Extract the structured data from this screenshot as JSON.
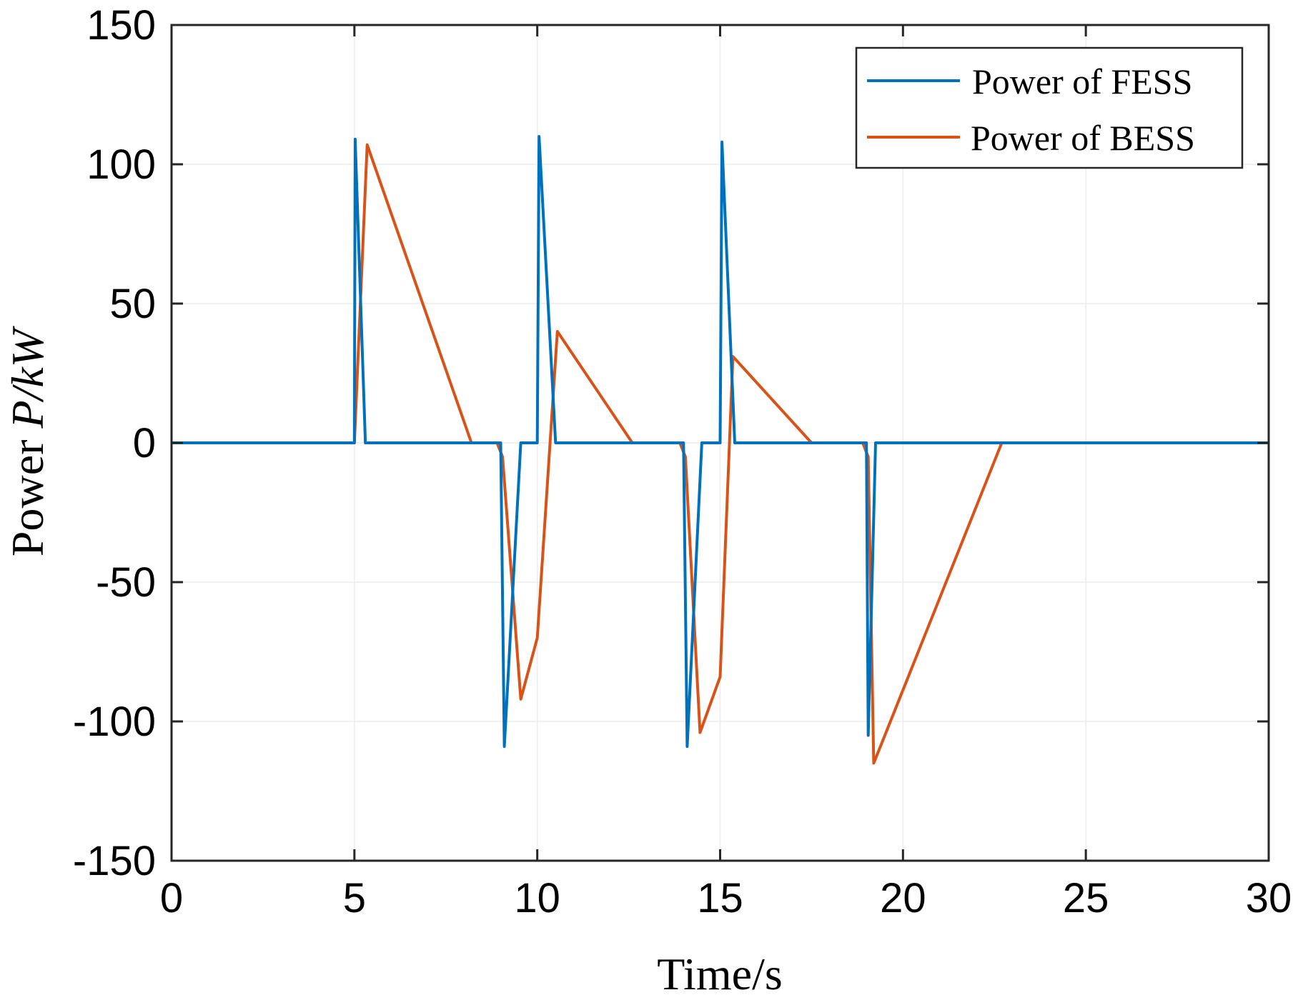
{
  "chart_data": {
    "type": "line",
    "title": "",
    "xlabel": "Time/s",
    "ylabel_prefix": "Power ",
    "ylabel_italic": "P/kW",
    "xlim": [
      0,
      30
    ],
    "ylim": [
      -150,
      150
    ],
    "xticks": [
      0,
      5,
      10,
      15,
      20,
      25,
      30
    ],
    "yticks": [
      -150,
      -100,
      -50,
      0,
      50,
      100,
      150
    ],
    "xtick_labels": [
      "0",
      "5",
      "10",
      "15",
      "20",
      "25",
      "30"
    ],
    "ytick_labels": [
      "-150",
      "-100",
      "-50",
      "0",
      "50",
      "100",
      "150"
    ],
    "grid": true,
    "legend_position": "top-right",
    "series": [
      {
        "name": "Power of FESS",
        "color": "#0072BD",
        "x": [
          0,
          5.0,
          5.02,
          5.3,
          30,
          30
        ],
        "y": [
          0,
          0,
          109,
          0,
          0,
          0
        ]
      },
      {
        "name": "Power of BESS",
        "color": "#D95319",
        "x": [
          0,
          5.0,
          5.35,
          8.2,
          8.9,
          9.05,
          9.55,
          10.0,
          10.55,
          12.6,
          13.9,
          14.05,
          14.45,
          15.0,
          15.35,
          17.5,
          18.9,
          19.05,
          19.2,
          22.7,
          30
        ],
        "y": [
          0,
          0,
          107,
          0,
          0,
          -5,
          -92,
          -70,
          40,
          0,
          0,
          -5,
          -104,
          -84,
          31,
          0,
          0,
          -5,
          -115,
          0,
          0
        ]
      }
    ]
  }
}
